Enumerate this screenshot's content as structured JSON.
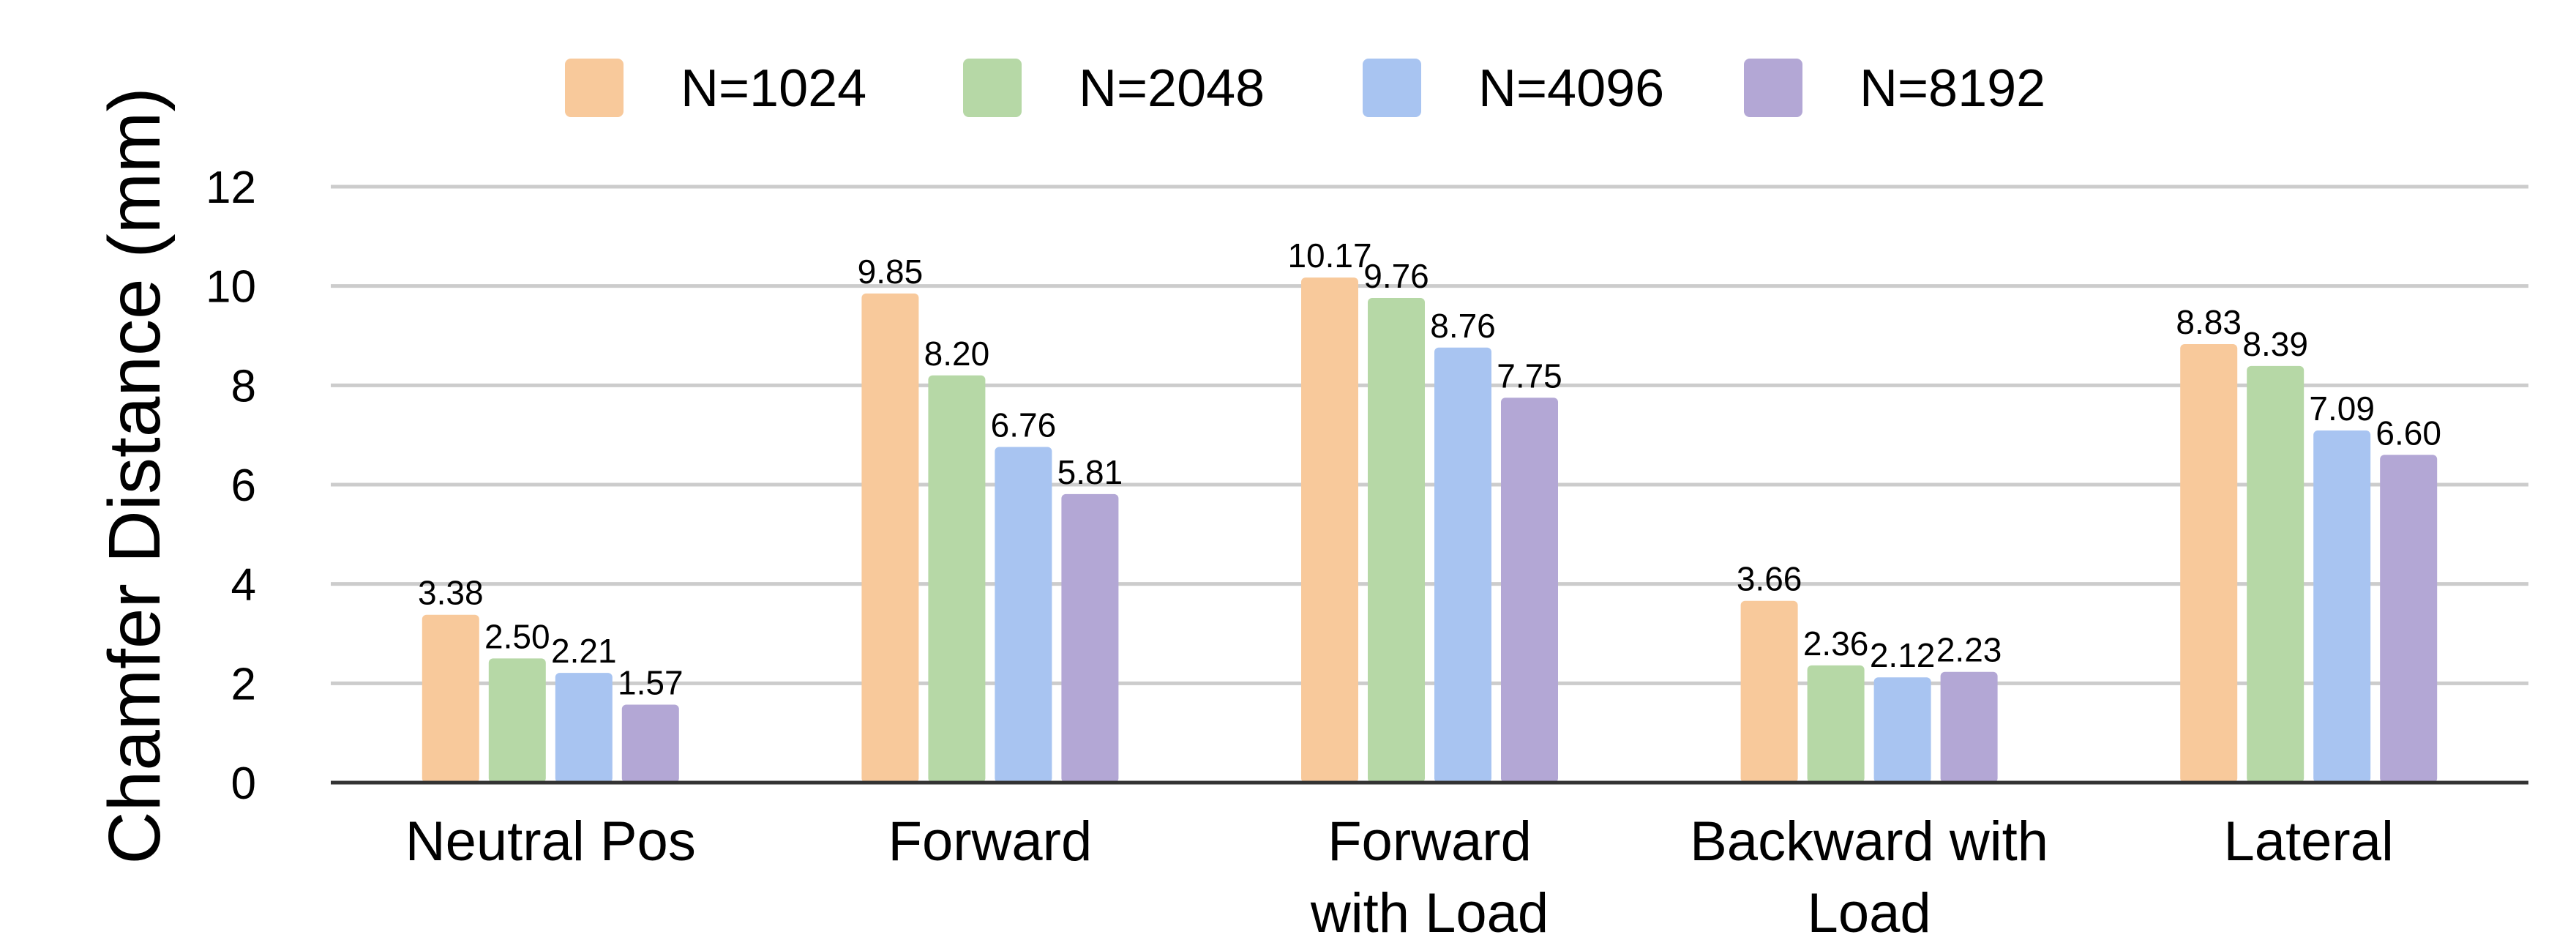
{
  "chart_data": {
    "type": "bar",
    "title": "",
    "ylabel": "Chamfer Distance (mm)",
    "xlabel": "",
    "ylim": [
      0,
      12
    ],
    "yticks": [
      0,
      2,
      4,
      6,
      8,
      10,
      12
    ],
    "grid": true,
    "legend_position": "top",
    "categories": [
      [
        "Neutral Pos"
      ],
      [
        "Forward"
      ],
      [
        "Forward",
        "with Load"
      ],
      [
        "Backward with",
        "Load"
      ],
      [
        "Lateral"
      ]
    ],
    "series": [
      {
        "name": "N=1024",
        "color": "#F8C99B",
        "values": [
          3.38,
          9.85,
          10.17,
          3.66,
          8.83
        ],
        "labels": [
          "3.38",
          "9.85",
          "10.17",
          "3.66",
          "8.83"
        ]
      },
      {
        "name": "N=2048",
        "color": "#B6D8A6",
        "values": [
          2.5,
          8.2,
          9.76,
          2.36,
          8.39
        ],
        "labels": [
          "2.50",
          "8.20",
          "9.76",
          "2.36",
          "8.39"
        ]
      },
      {
        "name": "N=4096",
        "color": "#A8C4F1",
        "values": [
          2.21,
          6.76,
          8.76,
          2.12,
          7.09
        ],
        "labels": [
          "2.21",
          "6.76",
          "8.76",
          "2.12",
          "7.09"
        ]
      },
      {
        "name": "N=8192",
        "color": "#B3A7D5",
        "values": [
          1.57,
          5.81,
          7.75,
          2.23,
          6.6
        ],
        "labels": [
          "1.57",
          "5.81",
          "7.75",
          "2.23",
          "6.60"
        ]
      }
    ]
  }
}
